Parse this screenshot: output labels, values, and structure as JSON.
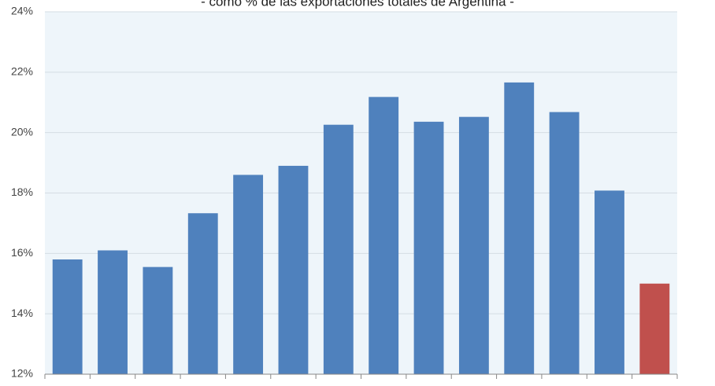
{
  "chart_data": {
    "type": "bar",
    "title": "- como % de las exportaciones totales de Argentina -",
    "categories": [
      null,
      null,
      null,
      null,
      null,
      null,
      null,
      null,
      null,
      null,
      null,
      null,
      null,
      null
    ],
    "values": [
      15.8,
      16.1,
      15.55,
      17.33,
      18.6,
      18.9,
      20.26,
      21.18,
      20.36,
      20.52,
      21.66,
      20.68,
      18.08,
      15.0
    ],
    "colors": [
      "#4f81bd",
      "#4f81bd",
      "#4f81bd",
      "#4f81bd",
      "#4f81bd",
      "#4f81bd",
      "#4f81bd",
      "#4f81bd",
      "#4f81bd",
      "#4f81bd",
      "#4f81bd",
      "#4f81bd",
      "#4f81bd",
      "#c0504d"
    ],
    "ylim": [
      12,
      24
    ],
    "yticks": [
      {
        "value": 12,
        "label": "12%"
      },
      {
        "value": 14,
        "label": "14%"
      },
      {
        "value": 16,
        "label": "16%"
      },
      {
        "value": 18,
        "label": "18%"
      },
      {
        "value": 20,
        "label": "20%"
      },
      {
        "value": 22,
        "label": "22%"
      },
      {
        "value": 24,
        "label": "24%"
      }
    ],
    "grid": true
  }
}
